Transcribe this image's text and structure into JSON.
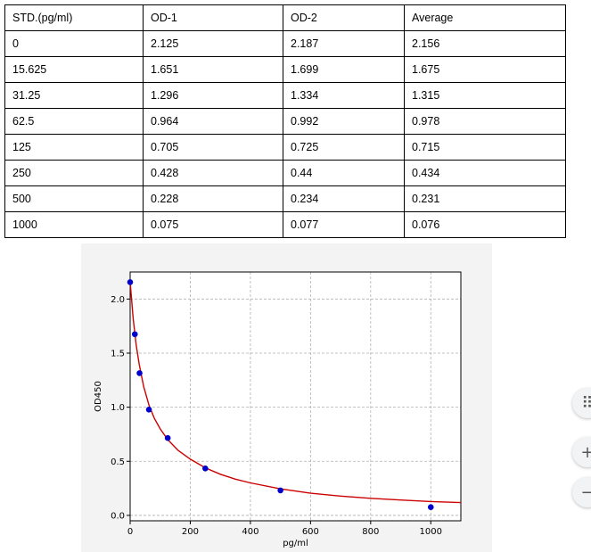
{
  "table": {
    "headers": [
      "STD.(pg/ml)",
      "OD-1",
      "OD-2",
      "Average"
    ],
    "rows": [
      [
        "0",
        "2.125",
        "2.187",
        "2.156"
      ],
      [
        "15.625",
        "1.651",
        "1.699",
        "1.675"
      ],
      [
        "31.25",
        "1.296",
        "1.334",
        "1.315"
      ],
      [
        "62.5",
        "0.964",
        "0.992",
        "0.978"
      ],
      [
        "125",
        "0.705",
        "0.725",
        "0.715"
      ],
      [
        "250",
        "0.428",
        "0.44",
        "0.434"
      ],
      [
        "500",
        "0.228",
        "0.234",
        "0.231"
      ],
      [
        "1000",
        "0.075",
        "0.077",
        "0.076"
      ]
    ]
  },
  "chart_data": {
    "type": "scatter",
    "title": "",
    "xlabel": "pg/ml",
    "ylabel": "OD450",
    "xlim": [
      0,
      1100
    ],
    "ylim": [
      -0.05,
      2.25
    ],
    "x_ticks": [
      0,
      200,
      400,
      600,
      800,
      1000
    ],
    "y_ticks": [
      0.0,
      0.5,
      1.0,
      1.5,
      2.0
    ],
    "x_tick_labels": [
      "0",
      "200",
      "400",
      "600",
      "800",
      "1000"
    ],
    "y_tick_labels": [
      "0.0",
      "0.5",
      "1.0",
      "1.5",
      "2.0"
    ],
    "grid": true,
    "series": [
      {
        "kind": "points",
        "color": "#0000cc",
        "x": [
          0,
          15.625,
          31.25,
          62.5,
          125,
          250,
          500,
          1000
        ],
        "y": [
          2.156,
          1.675,
          1.315,
          0.978,
          0.715,
          0.434,
          0.231,
          0.076
        ]
      },
      {
        "kind": "fitted-curve",
        "color": "#cc0000",
        "x": [
          0,
          10,
          20,
          30,
          45,
          62.5,
          80,
          100,
          125,
          160,
          200,
          250,
          300,
          350,
          400,
          500,
          600,
          700,
          800,
          900,
          1000,
          1100
        ],
        "y": [
          2.156,
          1.82,
          1.58,
          1.4,
          1.19,
          1.02,
          0.9,
          0.8,
          0.7,
          0.6,
          0.52,
          0.44,
          0.38,
          0.335,
          0.3,
          0.245,
          0.205,
          0.178,
          0.158,
          0.142,
          0.128,
          0.118
        ]
      }
    ]
  },
  "side_buttons": {
    "grid_icon": "⠿",
    "zoom_in": "+",
    "zoom_out": "−"
  }
}
